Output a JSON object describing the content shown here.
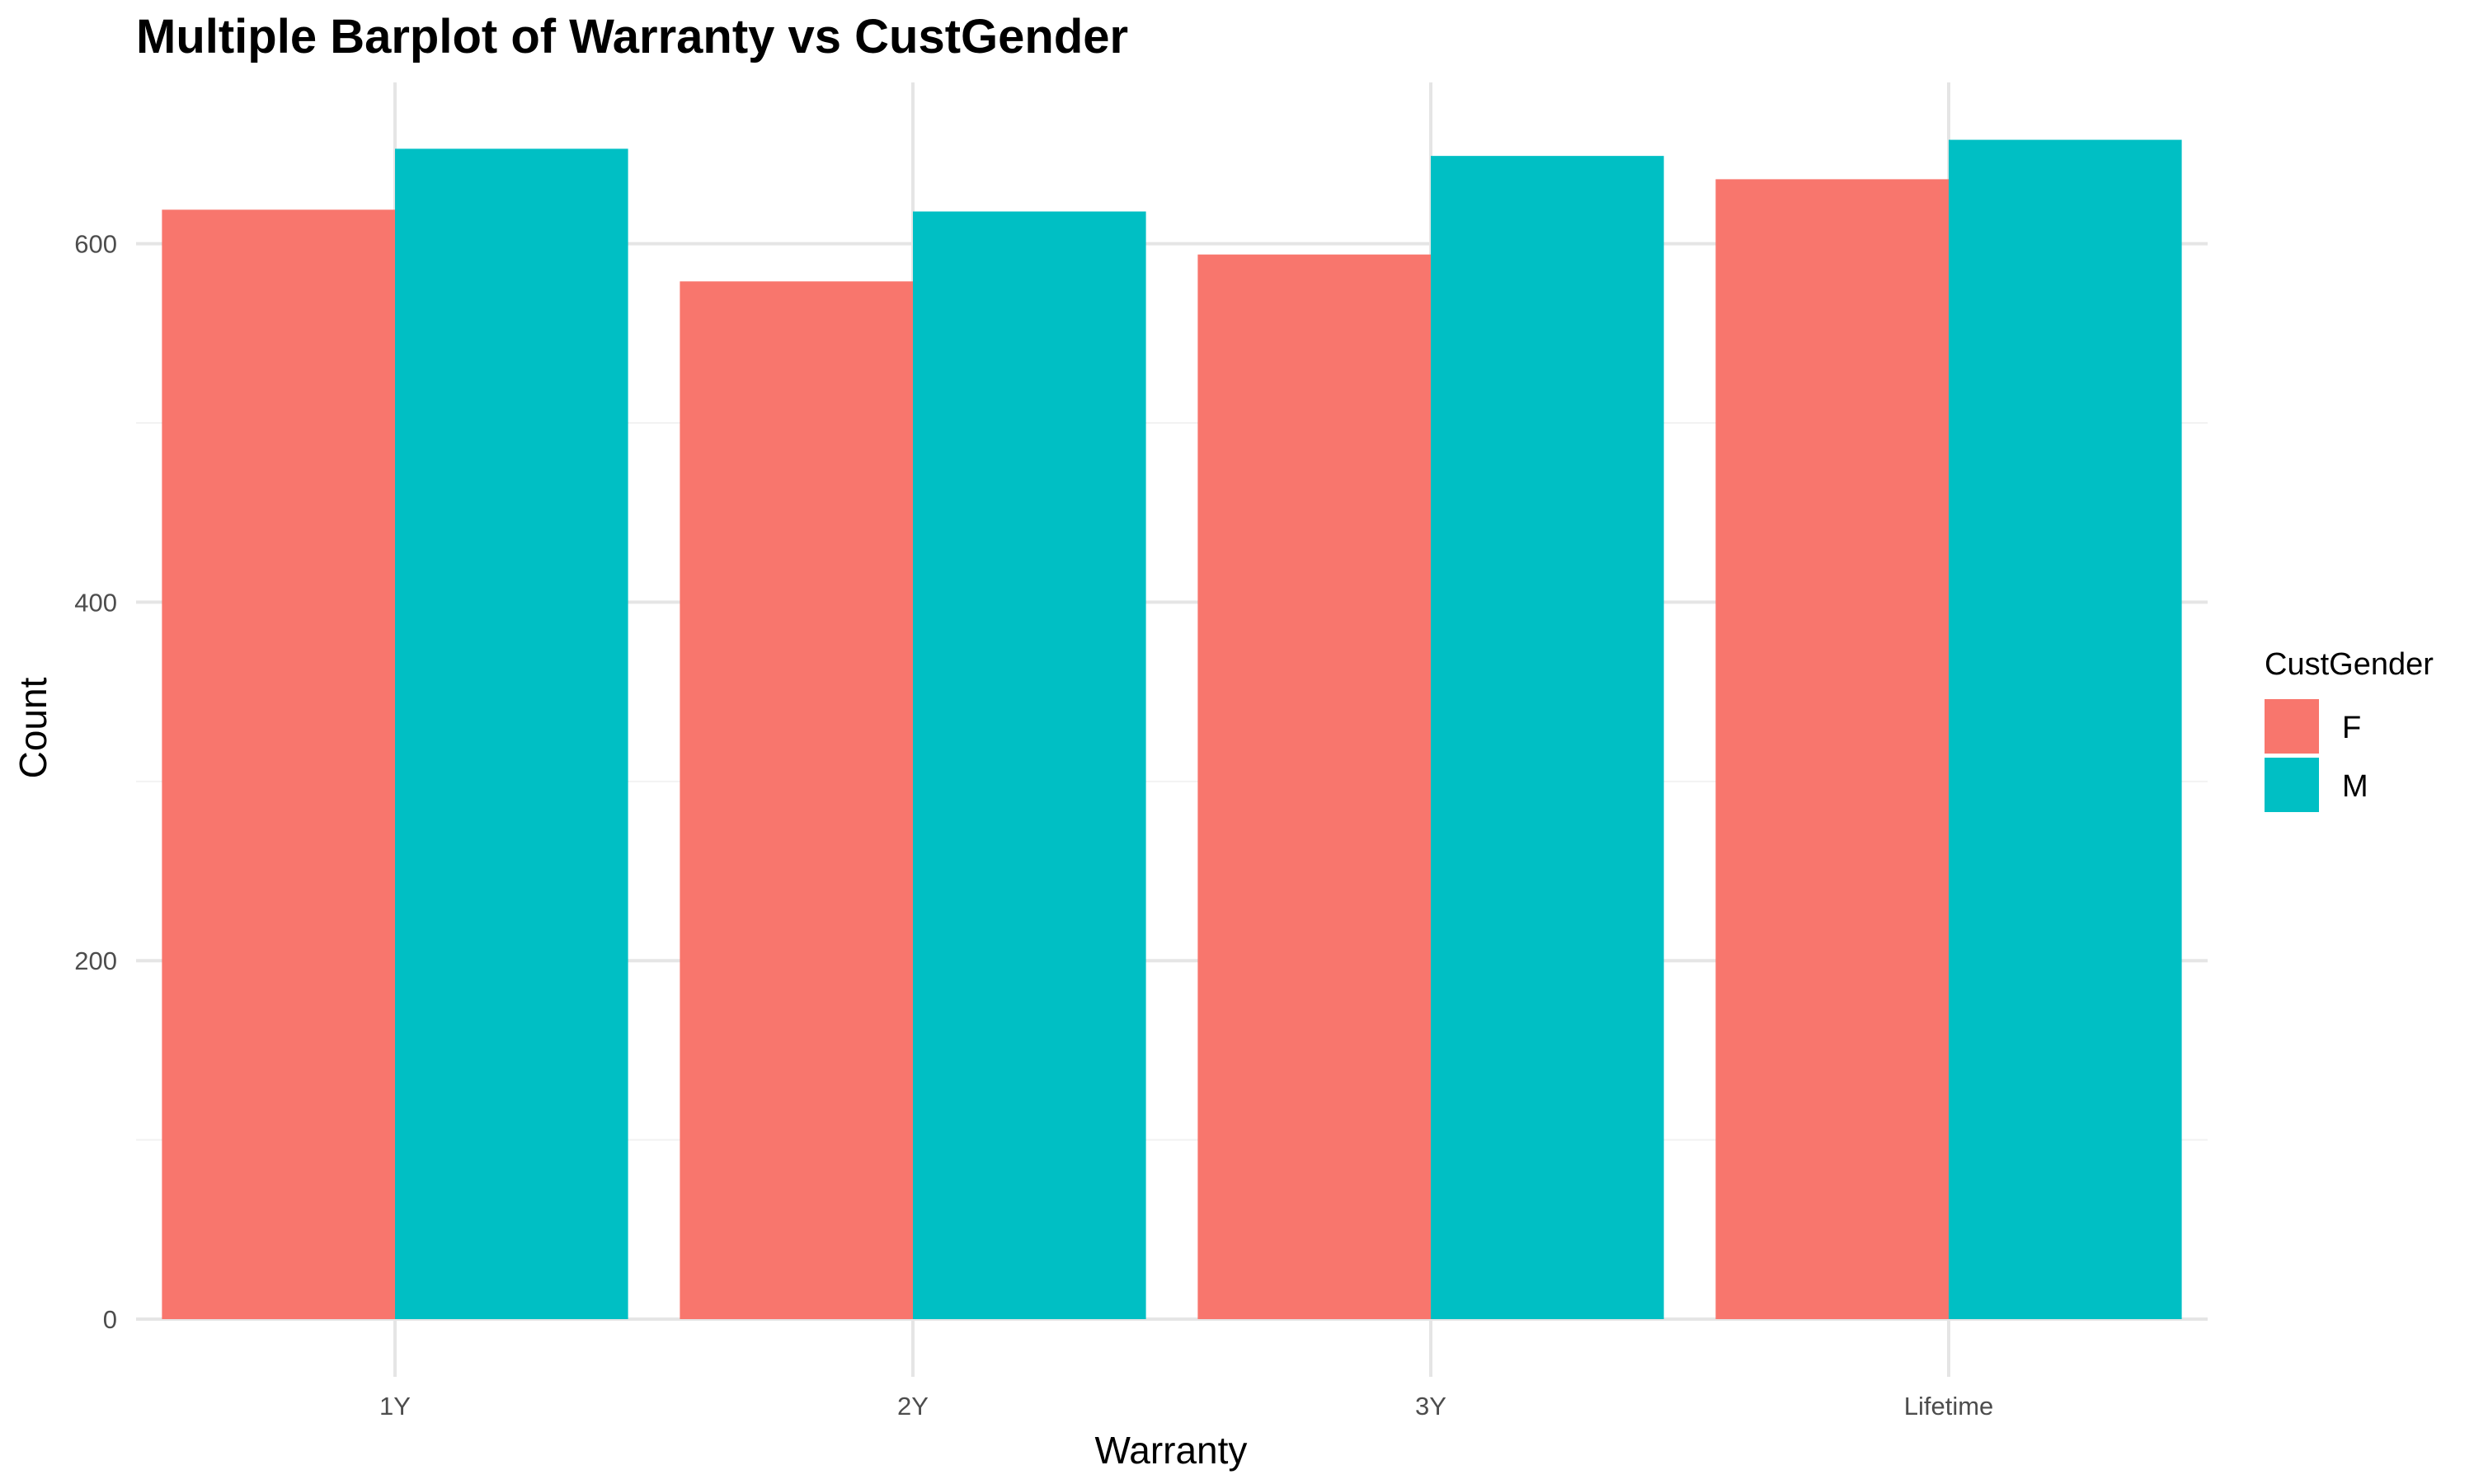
{
  "chart_data": {
    "type": "bar",
    "title": "Multiple Barplot of Warranty vs CustGender",
    "xlabel": "Warranty",
    "ylabel": "Count",
    "categories": [
      "1Y",
      "2Y",
      "3Y",
      "Lifetime"
    ],
    "series": [
      {
        "name": "F",
        "color": "#F8766D",
        "values": [
          619,
          579,
          594,
          636
        ]
      },
      {
        "name": "M",
        "color": "#00BFC4",
        "values": [
          653,
          618,
          649,
          658
        ]
      }
    ],
    "ylim": [
      0,
      690
    ],
    "yticks": [
      0,
      200,
      400,
      600
    ],
    "yticks_minor": [
      100,
      300,
      500
    ],
    "ytick_labels": [
      "0",
      "200",
      "400",
      "600"
    ],
    "grid": true,
    "legend": {
      "title": "CustGender",
      "position": "right"
    }
  }
}
